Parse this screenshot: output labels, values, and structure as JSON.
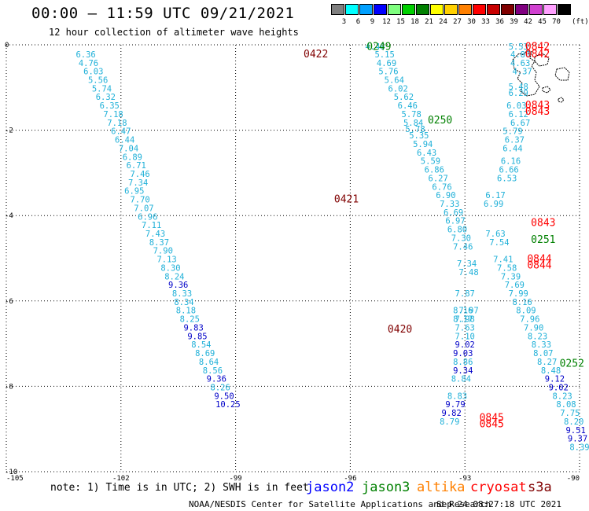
{
  "title": "00:00 – 11:59 UTC 09/21/2021",
  "subtitle": "12 hour collection of altimeter wave heights",
  "legend": {
    "unit": "(ft)",
    "bins": [
      {
        "label": "3",
        "color": "#7f7f7f"
      },
      {
        "label": "6",
        "color": "#00ffff"
      },
      {
        "label": "9",
        "color": "#00a0ff"
      },
      {
        "label": "12",
        "color": "#0000ff"
      },
      {
        "label": "15",
        "color": "#7fff7f"
      },
      {
        "label": "18",
        "color": "#00d000"
      },
      {
        "label": "21",
        "color": "#008000"
      },
      {
        "label": "24",
        "color": "#ffff00"
      },
      {
        "label": "27",
        "color": "#ffd000"
      },
      {
        "label": "30",
        "color": "#ff8000"
      },
      {
        "label": "33",
        "color": "#ff0000"
      },
      {
        "label": "36",
        "color": "#c80000"
      },
      {
        "label": "39",
        "color": "#800000"
      },
      {
        "label": "42",
        "color": "#800080"
      },
      {
        "label": "45",
        "color": "#d040d0"
      },
      {
        "label": "70",
        "color": "#ffa0ff"
      },
      {
        "label": "",
        "color": "#000000"
      }
    ]
  },
  "map": {
    "lon_range": [
      -105,
      -90
    ],
    "lat_range": [
      -10,
      0
    ],
    "lon_ticks": [
      "-105",
      "-102",
      "-99",
      "-96",
      "-93",
      "-90"
    ],
    "lat_ticks": [
      "0",
      "-2",
      "-4",
      "-6",
      "-8",
      "-10"
    ],
    "grid": "dotted"
  },
  "colors": {
    "light": "#1fb0d8",
    "mid": "#0000c8",
    "jason2": "#0000ff",
    "jason3": "#008000",
    "altika": "#ff8000",
    "cryosat": "#ff0000",
    "s3a": "#800000"
  },
  "observations": [
    {
      "lon": -95.35,
      "lat": -0.04,
      "text": "4.46",
      "c": "light"
    },
    {
      "lon": -95.1,
      "lat": -0.22,
      "text": "5.15",
      "c": "light"
    },
    {
      "lon": -95.05,
      "lat": -0.42,
      "text": "4.69",
      "c": "light"
    },
    {
      "lon": -95.0,
      "lat": -0.62,
      "text": "5.76",
      "c": "light"
    },
    {
      "lon": -94.85,
      "lat": -0.82,
      "text": "5.64",
      "c": "light"
    },
    {
      "lon": -94.75,
      "lat": -1.02,
      "text": "6.02",
      "c": "light"
    },
    {
      "lon": -94.6,
      "lat": -1.22,
      "text": "5.62",
      "c": "light"
    },
    {
      "lon": -94.5,
      "lat": -1.42,
      "text": "6.46",
      "c": "light"
    },
    {
      "lon": -94.4,
      "lat": -1.62,
      "text": "5.78",
      "c": "light"
    },
    {
      "lon": -94.35,
      "lat": -1.82,
      "text": "5.84",
      "c": "light"
    },
    {
      "lon": -94.3,
      "lat": -1.97,
      "text": "5.78",
      "c": "light"
    },
    {
      "lon": -94.2,
      "lat": -2.12,
      "text": "5.35",
      "c": "light"
    },
    {
      "lon": -94.1,
      "lat": -2.32,
      "text": "5.94",
      "c": "light"
    },
    {
      "lon": -94.0,
      "lat": -2.52,
      "text": "6.43",
      "c": "light"
    },
    {
      "lon": -93.9,
      "lat": -2.72,
      "text": "5.59",
      "c": "light"
    },
    {
      "lon": -93.8,
      "lat": -2.92,
      "text": "6.86",
      "c": "light"
    },
    {
      "lon": -93.7,
      "lat": -3.12,
      "text": "6.27",
      "c": "light"
    },
    {
      "lon": -93.6,
      "lat": -3.32,
      "text": "6.76",
      "c": "light"
    },
    {
      "lon": -93.5,
      "lat": -3.52,
      "text": "6.90",
      "c": "light"
    },
    {
      "lon": -93.4,
      "lat": -3.72,
      "text": "7.33",
      "c": "light"
    },
    {
      "lon": -93.3,
      "lat": -3.92,
      "text": "6.69",
      "c": "light"
    },
    {
      "lon": -93.25,
      "lat": -4.12,
      "text": "6.97",
      "c": "light"
    },
    {
      "lon": -93.2,
      "lat": -4.32,
      "text": "6.80",
      "c": "light"
    },
    {
      "lon": -93.1,
      "lat": -4.52,
      "text": "7.30",
      "c": "light"
    },
    {
      "lon": -93.05,
      "lat": -4.72,
      "text": "7.46",
      "c": "light"
    },
    {
      "lon": -92.95,
      "lat": -5.12,
      "text": "7.34",
      "c": "light"
    },
    {
      "lon": -92.9,
      "lat": -5.32,
      "text": "7.48",
      "c": "light"
    },
    {
      "lon": -93.0,
      "lat": -5.82,
      "text": "7.87",
      "c": "light"
    },
    {
      "lon": -92.9,
      "lat": -6.22,
      "text": "7.97",
      "c": "light"
    },
    {
      "lon": -93.05,
      "lat": -6.42,
      "text": "8.17",
      "c": "light"
    },
    {
      "lon": -95.3,
      "lat": -2.77,
      "text": "",
      "c": "light"
    },
    {
      "lon": -102.92,
      "lat": -0.22,
      "text": "6.36",
      "c": "light"
    },
    {
      "lon": -102.85,
      "lat": -0.42,
      "text": "4.76",
      "c": "light"
    },
    {
      "lon": -102.72,
      "lat": -0.62,
      "text": "6.03",
      "c": "light"
    },
    {
      "lon": -102.6,
      "lat": -0.82,
      "text": "5.56",
      "c": "light"
    },
    {
      "lon": -102.5,
      "lat": -1.02,
      "text": "5.74",
      "c": "light"
    },
    {
      "lon": -102.4,
      "lat": -1.22,
      "text": "6.32",
      "c": "light"
    },
    {
      "lon": -102.3,
      "lat": -1.42,
      "text": "6.35",
      "c": "light"
    },
    {
      "lon": -102.2,
      "lat": -1.62,
      "text": "7.18",
      "c": "light"
    },
    {
      "lon": -102.1,
      "lat": -1.82,
      "text": "7.18",
      "c": "light"
    },
    {
      "lon": -102.0,
      "lat": -2.02,
      "text": "6.47",
      "c": "light"
    },
    {
      "lon": -101.9,
      "lat": -2.22,
      "text": "6.44",
      "c": "light"
    },
    {
      "lon": -101.8,
      "lat": -2.42,
      "text": "7.04",
      "c": "light"
    },
    {
      "lon": -101.7,
      "lat": -2.62,
      "text": "6.89",
      "c": "light"
    },
    {
      "lon": -101.6,
      "lat": -2.82,
      "text": "6.71",
      "c": "light"
    },
    {
      "lon": -101.5,
      "lat": -3.02,
      "text": "7.46",
      "c": "light"
    },
    {
      "lon": -101.55,
      "lat": -3.22,
      "text": "7.34",
      "c": "light"
    },
    {
      "lon": -101.65,
      "lat": -3.42,
      "text": "6.95",
      "c": "light"
    },
    {
      "lon": -101.5,
      "lat": -3.62,
      "text": "7.70",
      "c": "light"
    },
    {
      "lon": -101.4,
      "lat": -3.82,
      "text": "7.07",
      "c": "light"
    },
    {
      "lon": -101.3,
      "lat": -4.02,
      "text": "6.96",
      "c": "light"
    },
    {
      "lon": -101.2,
      "lat": -4.22,
      "text": "7.11",
      "c": "light"
    },
    {
      "lon": -101.1,
      "lat": -4.42,
      "text": "7.43",
      "c": "light"
    },
    {
      "lon": -101.0,
      "lat": -4.62,
      "text": "8.37",
      "c": "light"
    },
    {
      "lon": -100.9,
      "lat": -4.82,
      "text": "7.90",
      "c": "light"
    },
    {
      "lon": -100.8,
      "lat": -5.02,
      "text": "7.13",
      "c": "light"
    },
    {
      "lon": -100.7,
      "lat": -5.22,
      "text": "8.30",
      "c": "light"
    },
    {
      "lon": -100.6,
      "lat": -5.42,
      "text": "8.24",
      "c": "light"
    },
    {
      "lon": -100.5,
      "lat": -5.62,
      "text": "9.36",
      "c": "mid"
    },
    {
      "lon": -100.4,
      "lat": -5.82,
      "text": "8.33",
      "c": "light"
    },
    {
      "lon": -100.35,
      "lat": -6.02,
      "text": "8.34",
      "c": "light"
    },
    {
      "lon": -100.3,
      "lat": -6.22,
      "text": "8.18",
      "c": "light"
    },
    {
      "lon": -100.2,
      "lat": -6.42,
      "text": "8.25",
      "c": "light"
    },
    {
      "lon": -100.1,
      "lat": -6.62,
      "text": "9.83",
      "c": "mid"
    },
    {
      "lon": -100.0,
      "lat": -6.82,
      "text": "9.85",
      "c": "mid"
    },
    {
      "lon": -99.9,
      "lat": -7.02,
      "text": "8.54",
      "c": "light"
    },
    {
      "lon": -99.8,
      "lat": -7.22,
      "text": "8.69",
      "c": "light"
    },
    {
      "lon": -99.7,
      "lat": -7.42,
      "text": "8.64",
      "c": "light"
    },
    {
      "lon": -99.6,
      "lat": -7.62,
      "text": "8.56",
      "c": "light"
    },
    {
      "lon": -99.5,
      "lat": -7.82,
      "text": "9.36",
      "c": "mid"
    },
    {
      "lon": -99.4,
      "lat": -8.02,
      "text": "8.26",
      "c": "light"
    },
    {
      "lon": -99.3,
      "lat": -8.22,
      "text": "9.50",
      "c": "mid"
    },
    {
      "lon": -99.2,
      "lat": -8.42,
      "text": "10.25",
      "c": "mid"
    },
    {
      "lon": -91.6,
      "lat": -0.04,
      "text": "5.53",
      "c": "light"
    },
    {
      "lon": -91.55,
      "lat": -0.22,
      "text": "4.80",
      "c": "light"
    },
    {
      "lon": -91.55,
      "lat": -0.42,
      "text": "4.63",
      "c": "light"
    },
    {
      "lon": -91.5,
      "lat": -0.62,
      "text": "4.37",
      "c": "light"
    },
    {
      "lon": -91.6,
      "lat": -0.98,
      "text": "5.48",
      "c": "light"
    },
    {
      "lon": -91.6,
      "lat": -1.12,
      "text": "6.29",
      "c": "light"
    },
    {
      "lon": -91.65,
      "lat": -1.42,
      "text": "6.03",
      "c": "light"
    },
    {
      "lon": -91.6,
      "lat": -1.62,
      "text": "6.12",
      "c": "light"
    },
    {
      "lon": -91.55,
      "lat": -1.82,
      "text": "6.67",
      "c": "light"
    },
    {
      "lon": -91.75,
      "lat": -2.02,
      "text": "5.79",
      "c": "light"
    },
    {
      "lon": -91.7,
      "lat": -2.22,
      "text": "6.37",
      "c": "light"
    },
    {
      "lon": -91.75,
      "lat": -2.42,
      "text": "6.44",
      "c": "light"
    },
    {
      "lon": -91.8,
      "lat": -2.72,
      "text": "6.16",
      "c": "light"
    },
    {
      "lon": -91.85,
      "lat": -2.92,
      "text": "6.66",
      "c": "light"
    },
    {
      "lon": -91.9,
      "lat": -3.12,
      "text": "6.53",
      "c": "light"
    },
    {
      "lon": -92.2,
      "lat": -3.52,
      "text": "6.17",
      "c": "light"
    },
    {
      "lon": -92.25,
      "lat": -3.72,
      "text": "6.99",
      "c": "light"
    },
    {
      "lon": -92.2,
      "lat": -4.42,
      "text": "7.63",
      "c": "light"
    },
    {
      "lon": -92.1,
      "lat": -4.62,
      "text": "7.54",
      "c": "light"
    },
    {
      "lon": -92.0,
      "lat": -5.02,
      "text": "7.41",
      "c": "light"
    },
    {
      "lon": -91.9,
      "lat": -5.22,
      "text": "7.58",
      "c": "light"
    },
    {
      "lon": -91.8,
      "lat": -5.42,
      "text": "7.39",
      "c": "light"
    },
    {
      "lon": -91.7,
      "lat": -5.62,
      "text": "7.69",
      "c": "light"
    },
    {
      "lon": -91.6,
      "lat": -5.82,
      "text": "7.99",
      "c": "light"
    },
    {
      "lon": -91.5,
      "lat": -6.02,
      "text": "8.16",
      "c": "light"
    },
    {
      "lon": -91.4,
      "lat": -6.22,
      "text": "8.09",
      "c": "light"
    },
    {
      "lon": -91.3,
      "lat": -6.42,
      "text": "7.96",
      "c": "light"
    },
    {
      "lon": -91.2,
      "lat": -6.62,
      "text": "7.90",
      "c": "light"
    },
    {
      "lon": -91.1,
      "lat": -6.82,
      "text": "8.23",
      "c": "light"
    },
    {
      "lon": -91.0,
      "lat": -7.02,
      "text": "8.33",
      "c": "light"
    },
    {
      "lon": -90.95,
      "lat": -7.22,
      "text": "8.07",
      "c": "light"
    },
    {
      "lon": -90.85,
      "lat": -7.42,
      "text": "8.27",
      "c": "light"
    },
    {
      "lon": -90.75,
      "lat": -7.62,
      "text": "8.48",
      "c": "light"
    },
    {
      "lon": -90.65,
      "lat": -7.82,
      "text": "9.12",
      "c": "mid"
    },
    {
      "lon": -90.55,
      "lat": -8.02,
      "text": "9.02",
      "c": "mid"
    },
    {
      "lon": -90.45,
      "lat": -8.22,
      "text": "8.23",
      "c": "light"
    },
    {
      "lon": -90.35,
      "lat": -8.42,
      "text": "8.08",
      "c": "light"
    },
    {
      "lon": -90.25,
      "lat": -8.62,
      "text": "7.75",
      "c": "light"
    },
    {
      "lon": -90.15,
      "lat": -8.82,
      "text": "8.20",
      "c": "light"
    },
    {
      "lon": -90.1,
      "lat": -9.02,
      "text": "9.51",
      "c": "mid"
    },
    {
      "lon": -90.05,
      "lat": -9.22,
      "text": "9.37",
      "c": "mid"
    },
    {
      "lon": -90.0,
      "lat": -9.42,
      "text": "8.39",
      "c": "light"
    },
    {
      "lon": -93.05,
      "lat": -6.22,
      "text": "8.16",
      "c": "light"
    },
    {
      "lon": -93.0,
      "lat": -6.42,
      "text": "7.98",
      "c": "light"
    },
    {
      "lon": -93.0,
      "lat": -6.62,
      "text": "7.63",
      "c": "light"
    },
    {
      "lon": -93.0,
      "lat": -6.82,
      "text": "7.10",
      "c": "light"
    },
    {
      "lon": -93.0,
      "lat": -7.02,
      "text": "9.02",
      "c": "mid"
    },
    {
      "lon": -93.05,
      "lat": -7.22,
      "text": "9.03",
      "c": "mid"
    },
    {
      "lon": -93.05,
      "lat": -7.42,
      "text": "8.86",
      "c": "light"
    },
    {
      "lon": -93.05,
      "lat": -7.62,
      "text": "9.34",
      "c": "mid"
    },
    {
      "lon": -93.1,
      "lat": -7.82,
      "text": "8.84",
      "c": "light"
    },
    {
      "lon": -93.2,
      "lat": -8.22,
      "text": "8.83",
      "c": "light"
    },
    {
      "lon": -93.25,
      "lat": -8.42,
      "text": "9.79",
      "c": "mid"
    },
    {
      "lon": -93.35,
      "lat": -8.62,
      "text": "9.82",
      "c": "mid"
    },
    {
      "lon": -93.4,
      "lat": -8.82,
      "text": "8.79",
      "c": "light"
    }
  ],
  "pass_labels": [
    {
      "lon": -95.25,
      "lat": -0.03,
      "text": "0249",
      "c": "jason3"
    },
    {
      "lon": -96.9,
      "lat": -0.2,
      "text": "0422",
      "c": "s3a"
    },
    {
      "lon": -91.1,
      "lat": -0.03,
      "text": "0842",
      "c": "cryosat"
    },
    {
      "lon": -91.1,
      "lat": -0.2,
      "text": "0842",
      "c": "cryosat"
    },
    {
      "lon": -91.1,
      "lat": -1.4,
      "text": "0843",
      "c": "cryosat"
    },
    {
      "lon": -91.1,
      "lat": -1.55,
      "text": "0843",
      "c": "cryosat"
    },
    {
      "lon": -93.65,
      "lat": -1.75,
      "text": "0250",
      "c": "jason3"
    },
    {
      "lon": -96.1,
      "lat": -3.6,
      "text": "0421",
      "c": "s3a"
    },
    {
      "lon": -90.95,
      "lat": -4.15,
      "text": "0843",
      "c": "cryosat"
    },
    {
      "lon": -90.95,
      "lat": -4.55,
      "text": "0251",
      "c": "jason3"
    },
    {
      "lon": -91.05,
      "lat": -5.0,
      "text": "0844",
      "c": "cryosat"
    },
    {
      "lon": -91.05,
      "lat": -5.15,
      "text": "0844",
      "c": "cryosat"
    },
    {
      "lon": -94.7,
      "lat": -6.65,
      "text": "0420",
      "c": "s3a"
    },
    {
      "lon": -90.2,
      "lat": -7.45,
      "text": "0252",
      "c": "jason3"
    },
    {
      "lon": -92.3,
      "lat": -8.72,
      "text": "0845",
      "c": "cryosat"
    },
    {
      "lon": -92.3,
      "lat": -8.87,
      "text": "0845",
      "c": "cryosat"
    }
  ],
  "note": "note: 1) Time is in UTC; 2) SWH is in feet",
  "satellites": [
    {
      "name": "jason2",
      "c": "jason2"
    },
    {
      "name": "jason3",
      "c": "jason3"
    },
    {
      "name": "altika",
      "c": "altika"
    },
    {
      "name": "cryosat",
      "c": "cryosat"
    },
    {
      "name": "s3a",
      "c": "s3a"
    }
  ],
  "footer": {
    "center": "NOAA/NESDIS Center for Satellite Applications and Research",
    "right": "Sep 24 08:27:18 UTC 2021"
  }
}
